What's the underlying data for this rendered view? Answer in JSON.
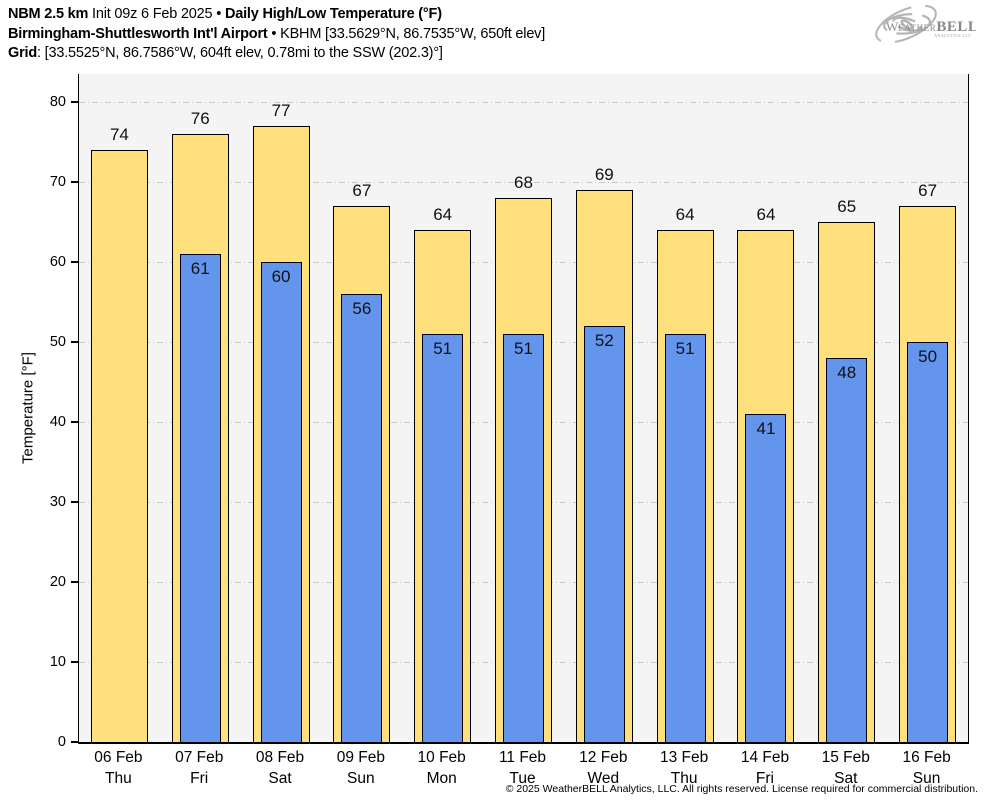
{
  "header": {
    "model": "NBM 2.5 km",
    "init": "Init 09z 6 Feb 2025",
    "separator": "•",
    "product": "Daily High/Low Temperature (°F)",
    "station_name": "Birmingham-Shuttlesworth Int'l Airport",
    "station_info": "KBHM [33.5629°N, 86.7535°W, 650ft elev]",
    "grid_label": "Grid",
    "grid_value": ": [33.5525°N, 86.7586°W, 604ft elev, 0.78mi to the SSW (202.3)°]"
  },
  "logo": {
    "brand_weather": "Weather",
    "brand_bell": "BELL",
    "subtext": "Analytics LLC"
  },
  "chart_data": {
    "type": "bar",
    "title": "NBM 2.5 km Init 09z 6 Feb 2025 • Daily High/Low Temperature (°F)",
    "subtitle": "Birmingham-Shuttlesworth Int'l Airport • KBHM [33.5629°N, 86.7535°W, 650ft elev]",
    "categories": [
      "06 Feb",
      "07 Feb",
      "08 Feb",
      "09 Feb",
      "10 Feb",
      "11 Feb",
      "12 Feb",
      "13 Feb",
      "14 Feb",
      "15 Feb",
      "16 Feb"
    ],
    "weekdays": [
      "Thu",
      "Fri",
      "Sat",
      "Sun",
      "Mon",
      "Tue",
      "Wed",
      "Thu",
      "Fri",
      "Sat",
      "Sun"
    ],
    "series": [
      {
        "name": "High",
        "color": "#FFE07D",
        "values": [
          74,
          76,
          77,
          67,
          64,
          68,
          69,
          64,
          64,
          65,
          67
        ]
      },
      {
        "name": "Low",
        "color": "#6495ED",
        "values": [
          null,
          61,
          60,
          56,
          51,
          51,
          52,
          51,
          41,
          48,
          50
        ]
      }
    ],
    "xlabel": "",
    "ylabel": "Temperature [°F]",
    "ylim": [
      0,
      83.5
    ],
    "yticks": [
      0,
      10,
      20,
      30,
      40,
      50,
      60,
      70,
      80
    ],
    "grid": "horizontal dash-dot",
    "plot_background": "#f4f4f4",
    "bar_edge_color": "#000000",
    "legend": "none"
  },
  "footer": {
    "copyright": "© 2025 WeatherBELL Analytics, LLC. All rights reserved. License required for commercial distribution."
  }
}
